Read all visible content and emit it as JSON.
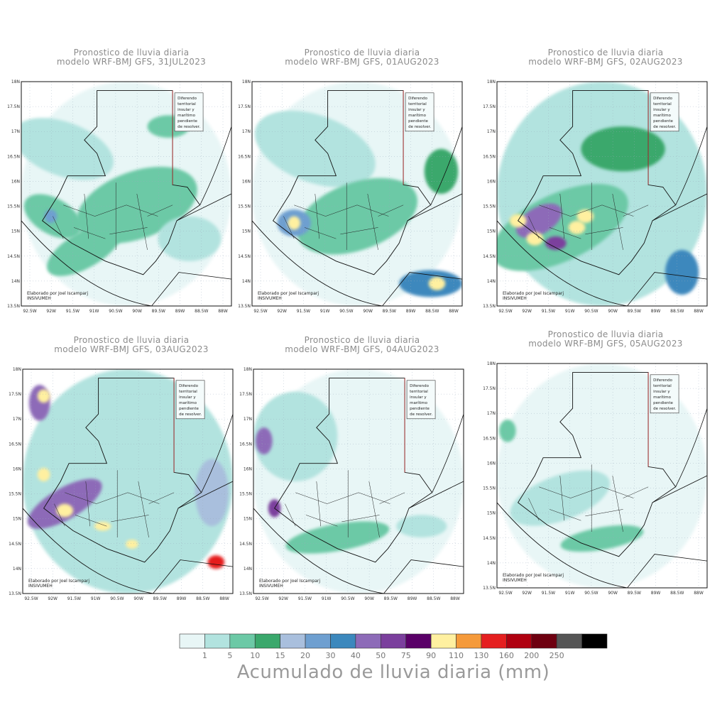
{
  "panels": [
    {
      "line1": "Pronostico de lluvia diaria",
      "line2": "modelo WRF-BMJ GFS,  31JUL2023",
      "credit": "Elaborado  por Joel Iscamparj",
      "org": "INSIVUMEH"
    },
    {
      "line1": "Pronostico de lluvia diaria",
      "line2": "modelo WRF-BMJ GFS,  01AUG2023",
      "credit": "Elaborado  por Joel Iscamparj",
      "org": "INSIVUMEH"
    },
    {
      "line1": "Pronostico de lluvia diaria",
      "line2": "modelo WRF-BMJ GFS,  02AUG2023",
      "credit": "Elaborado  por Joel Iscamparj",
      "org": "INSIVUMEH"
    },
    {
      "line1": "Pronostico de lluvia diaria",
      "line2": "modelo WRF-BMJ GFS,  03AUG2023",
      "credit": "Elaborado  por Joel Iscamparj",
      "org": "INSIVUMEH"
    },
    {
      "line1": "Pronostico de lluvia diaria",
      "line2": "modelo WRF-BMJ GFS,  04AUG2023",
      "credit": "Elaborado  por Joel Iscamparj",
      "org": "INSIVUMEH"
    },
    {
      "line1": "Pronostico de lluvia diaria",
      "line2": "modelo WRF-BMJ GFS,  05AUG2023",
      "credit": "Elaborado  por Joel Iscamparj",
      "org": "INSIVUMEH"
    }
  ],
  "note_lines": [
    "Diferendo",
    "territorial",
    "insular y",
    "marítimo",
    "pendiente",
    "de resolver."
  ],
  "lat_ticks": [
    "18N",
    "17.5N",
    "17N",
    "16.5N",
    "16N",
    "15.5N",
    "15N",
    "14.5N",
    "14N",
    "13.5N"
  ],
  "lon_ticks": [
    "92.5W",
    "92W",
    "91.5W",
    "91W",
    "90.5W",
    "90W",
    "89.5W",
    "89W",
    "88.5W",
    "88W"
  ],
  "colorbar": {
    "title": "Acumulado de lluvia diaria (mm)",
    "labels": [
      "1",
      "5",
      "10",
      "15",
      "20",
      "30",
      "40",
      "50",
      "75",
      "90",
      "110",
      "130",
      "160",
      "200",
      "250"
    ],
    "colors": [
      "#e8f6f6",
      "#b2e3df",
      "#6cc9a6",
      "#3aa86c",
      "#a9bfdd",
      "#6e9fd0",
      "#3c88bd",
      "#8d6bb8",
      "#7b3f9d",
      "#5a0068",
      "#fff0a0",
      "#f59a3a",
      "#e51f1f",
      "#b00010",
      "#6e0010",
      "#555555",
      "#000000"
    ]
  }
}
